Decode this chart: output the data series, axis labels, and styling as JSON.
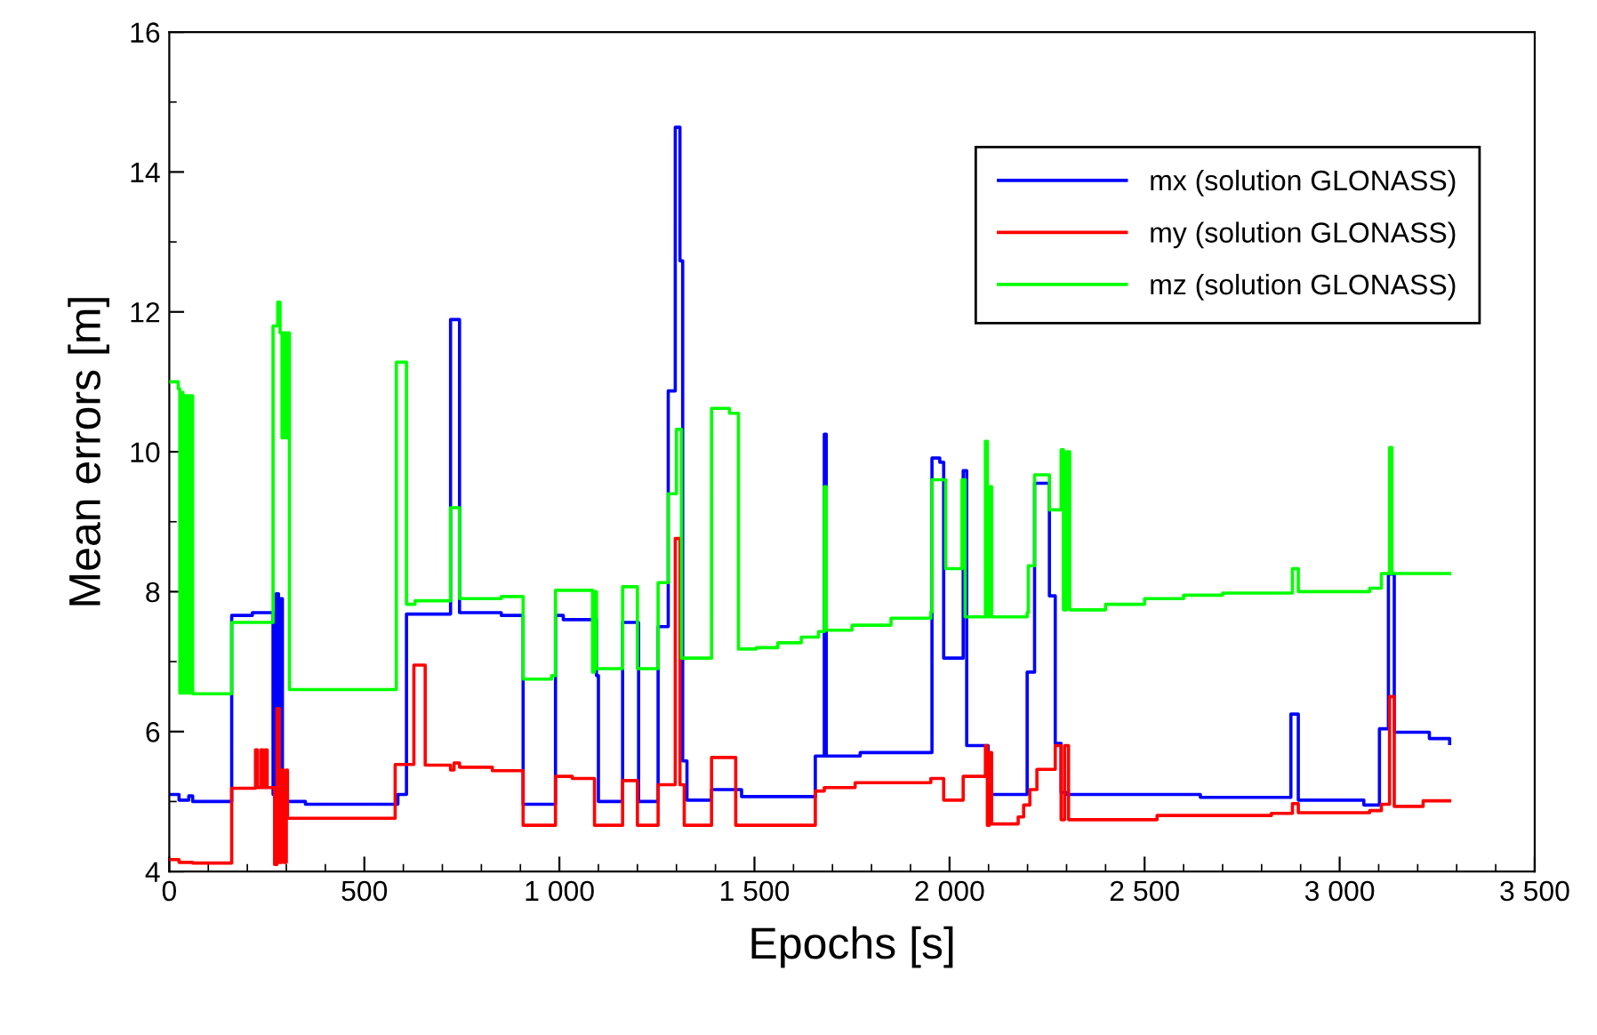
{
  "chart_data": {
    "type": "step",
    "xlabel": "Epochs [s]",
    "ylabel": "Mean errors [m]",
    "xlim": [
      0,
      3500
    ],
    "ylim": [
      4,
      16
    ],
    "xticks": [
      0,
      500,
      {
        "value": 1000,
        "label": "1 000"
      },
      {
        "value": 1500,
        "label": "1 500"
      },
      {
        "value": 2000,
        "label": "2 000"
      },
      {
        "value": 2500,
        "label": "2 500"
      },
      {
        "value": 3000,
        "label": "3 000"
      },
      {
        "value": 3500,
        "label": "3 500"
      }
    ],
    "yticks": [
      4,
      6,
      8,
      10,
      12,
      14,
      16
    ],
    "grid": false,
    "legend": "top right",
    "marker": "none",
    "line_style": "solid",
    "series": [
      {
        "name": "mx (solution GLONASS)",
        "color": "#0000ff",
        "x": [
          0,
          25,
          50,
          60,
          160,
          213,
          266,
          274,
          280,
          285,
          290,
          295,
          349,
          586,
          608,
          721,
          744,
          851,
          907,
          990,
          1010,
          1095,
          1100,
          1162,
          1203,
          1253,
          1279,
          1297,
          1309,
          1316,
          1327,
          1390,
          1467,
          1656,
          1679,
          1684,
          1771,
          1955,
          1975,
          1985,
          2035,
          2044,
          2099,
          2199,
          2218,
          2256,
          2271,
          2286,
          2300,
          2643,
          2875,
          2894,
          3062,
          3102,
          3125,
          3140,
          3230,
          3282
        ],
        "values": [
          5.1,
          5.02,
          5.08,
          5.0,
          7.66,
          7.7,
          5.1,
          7.97,
          5.1,
          7.9,
          5.1,
          5.0,
          4.96,
          5.1,
          7.68,
          11.89,
          7.7,
          7.66,
          4.96,
          7.66,
          7.6,
          6.8,
          5.0,
          7.56,
          5.0,
          7.5,
          10.87,
          14.64,
          12.73,
          5.58,
          5.02,
          5.17,
          5.07,
          5.65,
          10.25,
          5.65,
          5.7,
          9.91,
          9.85,
          7.05,
          9.73,
          5.8,
          5.1,
          6.85,
          9.55,
          7.94,
          5.83,
          5.13,
          5.1,
          5.06,
          6.25,
          5.02,
          4.95,
          6.04,
          8.25,
          5.99,
          5.9,
          5.83
        ]
      },
      {
        "name": "my (solution GLONASS)",
        "color": "#ff0000",
        "x": [
          0,
          25,
          60,
          160,
          221,
          226,
          235,
          240,
          246,
          251,
          270,
          276,
          282,
          288,
          294,
          300,
          303,
          579,
          627,
          656,
          721,
          730,
          744,
          828,
          907,
          990,
          1033,
          1090,
          1162,
          1200,
          1253,
          1297,
          1309,
          1320,
          1390,
          1452,
          1656,
          1679,
          1758,
          1952,
          1985,
          2035,
          2092,
          2097,
          2102,
          2108,
          2176,
          2190,
          2206,
          2224,
          2271,
          2286,
          2295,
          2305,
          2532,
          2825,
          2879,
          2894,
          3077,
          3107,
          3128,
          3140,
          3214,
          3282
        ],
        "values": [
          4.17,
          4.13,
          4.12,
          5.19,
          5.74,
          5.2,
          5.74,
          5.2,
          5.74,
          5.2,
          4.1,
          6.33,
          4.13,
          5.45,
          4.13,
          5.45,
          4.76,
          5.53,
          6.95,
          5.52,
          5.45,
          5.55,
          5.49,
          5.44,
          4.66,
          5.36,
          5.33,
          4.66,
          5.3,
          4.66,
          5.24,
          8.76,
          5.24,
          4.66,
          5.63,
          4.66,
          5.15,
          5.2,
          5.27,
          5.33,
          5.02,
          5.36,
          5.8,
          4.66,
          5.7,
          4.68,
          4.78,
          4.95,
          5.17,
          5.46,
          5.8,
          4.74,
          5.8,
          4.74,
          4.8,
          4.83,
          4.97,
          4.84,
          4.87,
          4.96,
          6.5,
          4.93,
          5.01,
          5.01
        ]
      },
      {
        "name": "mz (solution GLONASS)",
        "color": "#00ff00",
        "x": [
          0,
          23,
          27,
          31,
          35,
          39,
          43,
          47,
          51,
          55,
          60,
          160,
          266,
          278,
          284,
          289,
          294,
          299,
          304,
          308,
          582,
          608,
          630,
          721,
          744,
          851,
          907,
          980,
          990,
          1085,
          1090,
          1095,
          1162,
          1200,
          1253,
          1279,
          1300,
          1313,
          1390,
          1436,
          1459,
          1505,
          1560,
          1620,
          1664,
          1679,
          1684,
          1750,
          1850,
          1952,
          1955,
          1990,
          2032,
          2040,
          2092,
          2097,
          2102,
          2108,
          2199,
          2202,
          2218,
          2256,
          2286,
          2292,
          2300,
          2308,
          2400,
          2500,
          2600,
          2700,
          2879,
          2894,
          3077,
          3107,
          3128,
          3134,
          3282
        ],
        "values": [
          11.0,
          10.9,
          6.55,
          10.85,
          6.55,
          10.8,
          6.55,
          10.8,
          6.55,
          10.8,
          6.54,
          7.56,
          11.8,
          12.14,
          11.7,
          10.2,
          11.7,
          10.2,
          11.7,
          6.6,
          11.28,
          7.82,
          7.87,
          9.2,
          7.9,
          7.93,
          6.75,
          6.8,
          8.02,
          6.85,
          8.0,
          6.9,
          8.07,
          6.9,
          8.13,
          9.4,
          10.32,
          7.05,
          10.62,
          10.55,
          7.18,
          7.2,
          7.27,
          7.35,
          7.43,
          9.5,
          7.45,
          7.52,
          7.62,
          7.71,
          9.6,
          8.33,
          9.6,
          7.64,
          10.15,
          7.64,
          9.5,
          7.64,
          7.7,
          8.37,
          9.67,
          9.17,
          10.03,
          7.74,
          10.0,
          7.74,
          7.82,
          7.9,
          7.95,
          7.98,
          8.33,
          8.0,
          8.05,
          8.26,
          10.06,
          8.26,
          8.26
        ]
      }
    ]
  }
}
